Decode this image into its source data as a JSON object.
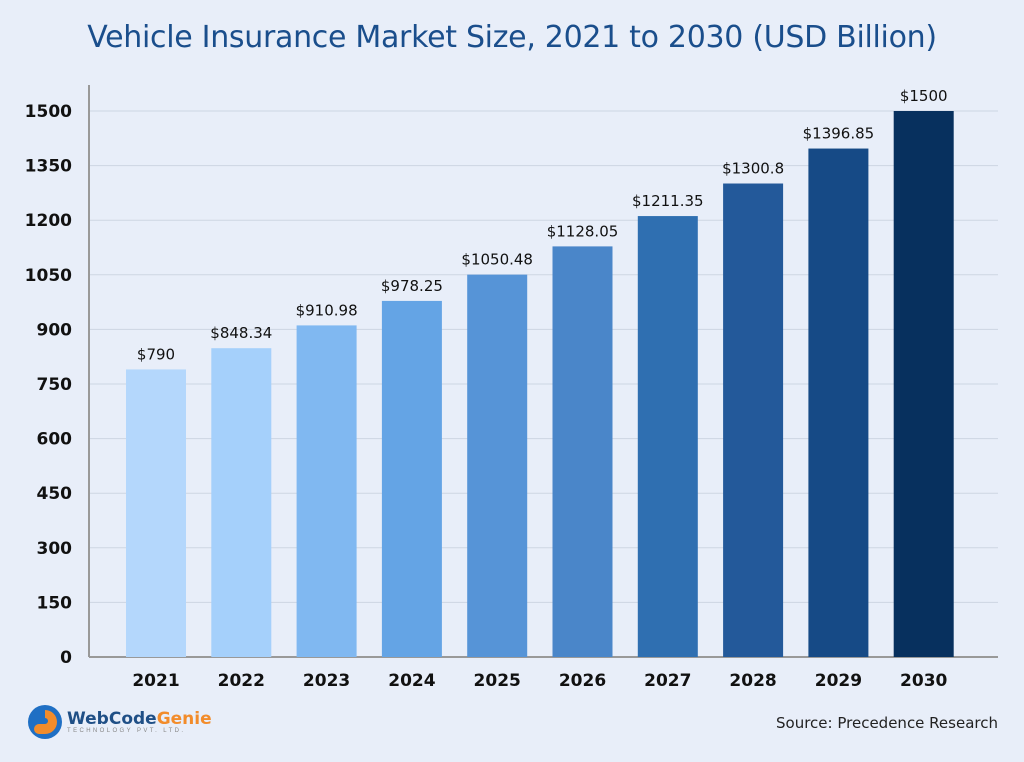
{
  "chart_data": {
    "type": "bar",
    "title": "Vehicle Insurance Market Size, 2021 to 2030 (USD Billion)",
    "categories": [
      "2021",
      "2022",
      "2023",
      "2024",
      "2025",
      "2026",
      "2027",
      "2028",
      "2029",
      "2030"
    ],
    "values": [
      790,
      848.34,
      910.98,
      978.25,
      1050.48,
      1128.05,
      1211.35,
      1300.8,
      1396.85,
      1500
    ],
    "data_labels": [
      "$790",
      "$848.34",
      "$910.98",
      "$978.25",
      "$1050.48",
      "$1128.05",
      "$1211.35",
      "$1300.8",
      "$1396.85",
      "$1500"
    ],
    "bar_colors": [
      "#b4d7fc",
      "#a5d0fb",
      "#80b8f1",
      "#64a4e5",
      "#5694d7",
      "#4a86c9",
      "#2f6fb1",
      "#23599a",
      "#164a86",
      "#07305e"
    ],
    "yticks": [
      0,
      150,
      300,
      450,
      600,
      750,
      900,
      1050,
      1200,
      1350,
      1500
    ],
    "ylim": [
      0,
      1500
    ],
    "xlabel": "",
    "ylabel": "",
    "grid": true,
    "legend": "none"
  },
  "source": {
    "prefix": "Source: ",
    "name": "Precedence Research"
  },
  "logo": {
    "web_code": "WebCode",
    "genie": "Genie",
    "subtitle": "TECHNOLOGY PVT. LTD."
  }
}
